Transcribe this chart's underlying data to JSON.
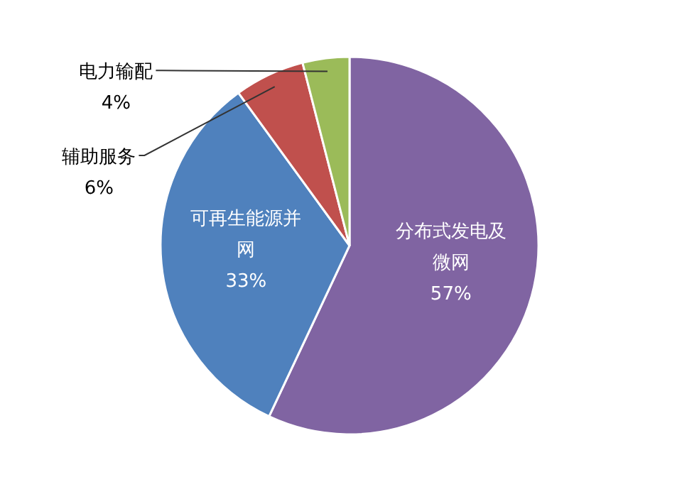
{
  "chart_data": {
    "type": "pie",
    "categories": [
      "分布式发电及微网",
      "可再生能源并网",
      "辅助服务",
      "电力输配"
    ],
    "values": [
      57,
      33,
      6,
      4
    ],
    "colors": [
      "#8064a2",
      "#4f81bd",
      "#c0504d",
      "#9bbb59"
    ],
    "value_labels": [
      "57%",
      "33%",
      "6%",
      "4%"
    ]
  }
}
